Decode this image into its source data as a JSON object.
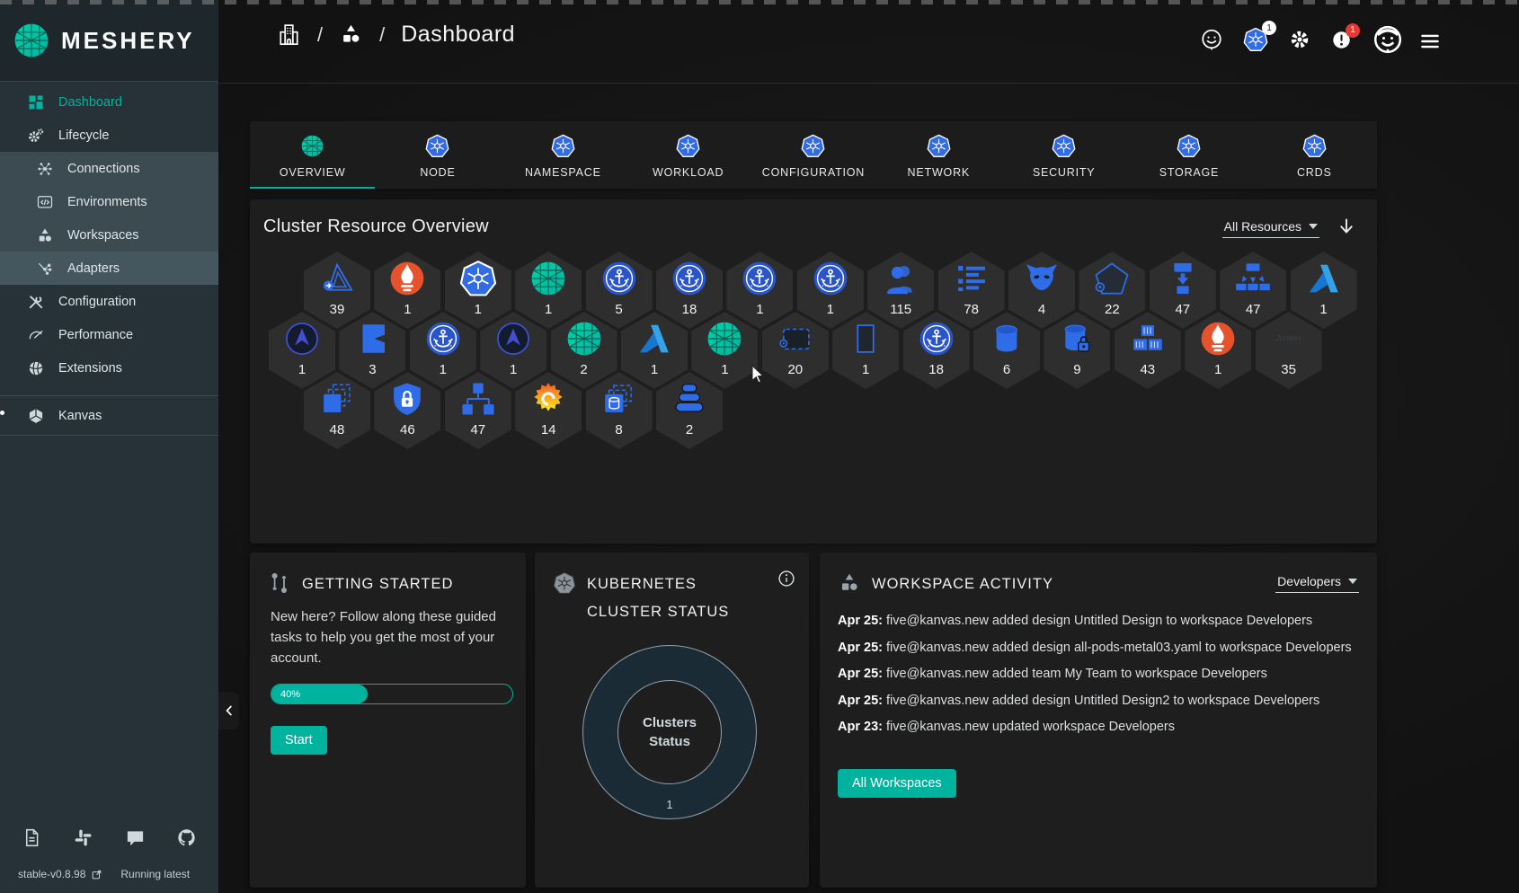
{
  "brand": {
    "name": "MESHERY"
  },
  "accent_color": "#00B39F",
  "sidebar": {
    "items": [
      {
        "label": "Dashboard",
        "icon": "dashboard",
        "active": true,
        "group": false
      },
      {
        "label": "Lifecycle",
        "icon": "lifecycle",
        "active": false,
        "group": false
      },
      {
        "label": "Connections",
        "icon": "connections",
        "active": false,
        "group": true
      },
      {
        "label": "Environments",
        "icon": "environments",
        "active": false,
        "group": true
      },
      {
        "label": "Workspaces",
        "icon": "workspaces",
        "active": false,
        "group": true
      },
      {
        "label": "Adapters",
        "icon": "adapters",
        "active": false,
        "group": true,
        "highlight": true
      },
      {
        "label": "Configuration",
        "icon": "configuration",
        "active": false,
        "group": false
      },
      {
        "label": "Performance",
        "icon": "performance",
        "active": false,
        "group": false
      },
      {
        "label": "Extensions",
        "icon": "extensions",
        "active": false,
        "group": false
      }
    ],
    "secondary": [
      {
        "label": "Kanvas",
        "icon": "kanvas"
      }
    ],
    "footer": {
      "icons": [
        "doc",
        "slack",
        "chat",
        "github"
      ],
      "version": "stable-v0.8.98",
      "status": "Running latest"
    }
  },
  "header": {
    "breadcrumb": {
      "icons": [
        "building",
        "shapes"
      ],
      "separator": "/",
      "title": "Dashboard"
    },
    "actions": [
      {
        "icon": "smiley",
        "name": "meshy-assistant"
      },
      {
        "icon": "kubernetes",
        "name": "cluster-connection",
        "badge": "1",
        "badge_style": "light"
      },
      {
        "icon": "gear",
        "name": "settings"
      },
      {
        "icon": "alert",
        "name": "notifications",
        "badge": "1",
        "badge_style": "red"
      },
      {
        "icon": "avatar",
        "name": "profile"
      }
    ],
    "menu_icon": "menu"
  },
  "tabs": [
    {
      "label": "OVERVIEW",
      "icon": "meshery",
      "active": true
    },
    {
      "label": "NODE",
      "icon": "kubernetes",
      "active": false
    },
    {
      "label": "NAMESPACE",
      "icon": "kubernetes",
      "active": false
    },
    {
      "label": "WORKLOAD",
      "icon": "kubernetes",
      "active": false
    },
    {
      "label": "CONFIGURATION",
      "icon": "kubernetes",
      "active": false
    },
    {
      "label": "NETWORK",
      "icon": "kubernetes",
      "active": false
    },
    {
      "label": "SECURITY",
      "icon": "kubernetes",
      "active": false
    },
    {
      "label": "STORAGE",
      "icon": "kubernetes",
      "active": false
    },
    {
      "label": "CRDS",
      "icon": "kubernetes",
      "active": false
    }
  ],
  "overview": {
    "title": "Cluster Resource Overview",
    "filter_label": "All Resources",
    "rows": [
      [
        {
          "icon": "triangle-arrow",
          "count": "39"
        },
        {
          "icon": "prometheus",
          "count": "1"
        },
        {
          "icon": "kubernetes",
          "count": "1"
        },
        {
          "icon": "meshery",
          "count": "1"
        },
        {
          "icon": "cert-manager",
          "count": "5"
        },
        {
          "icon": "cert-manager",
          "count": "18"
        },
        {
          "icon": "cert-manager",
          "count": "1"
        },
        {
          "icon": "cert-manager",
          "count": "1"
        },
        {
          "icon": "users",
          "count": "115"
        },
        {
          "icon": "list",
          "count": "78"
        },
        {
          "icon": "daemon",
          "count": "4"
        },
        {
          "icon": "pentagon",
          "count": "22"
        },
        {
          "icon": "deploy-arrow",
          "count": "47"
        },
        {
          "icon": "fan-out",
          "count": "47"
        },
        {
          "icon": "azure",
          "count": "1"
        }
      ],
      [
        {
          "icon": "circle-arrow",
          "count": "1"
        },
        {
          "icon": "square-left-arrow",
          "count": "3"
        },
        {
          "icon": "cert-manager",
          "count": "1"
        },
        {
          "icon": "circle-arrow",
          "count": "1"
        },
        {
          "icon": "meshery",
          "count": "2"
        },
        {
          "icon": "azure",
          "count": "1"
        },
        {
          "icon": "meshery",
          "count": "1"
        },
        {
          "icon": "dashed-rect",
          "count": "20"
        },
        {
          "icon": "rect-outline",
          "count": "1"
        },
        {
          "icon": "cert-manager",
          "count": "18"
        },
        {
          "icon": "cylinder",
          "count": "6"
        },
        {
          "icon": "cylinder-lock",
          "count": "9"
        },
        {
          "icon": "containers",
          "count": "43"
        },
        {
          "icon": "prometheus",
          "count": "1"
        },
        {
          "icon": "juniper",
          "count": "35"
        }
      ],
      [
        {
          "icon": "pages-stack",
          "count": "48"
        },
        {
          "icon": "shield-lock",
          "count": "46"
        },
        {
          "icon": "net-tree",
          "count": "47"
        },
        {
          "icon": "grafana",
          "count": "14"
        },
        {
          "icon": "layers-cylinder",
          "count": "8"
        },
        {
          "icon": "disks-stack",
          "count": "2"
        }
      ]
    ]
  },
  "cards": {
    "getting_started": {
      "icon": "journey",
      "title": "GETTING STARTED",
      "body": "New here? Follow along these guided tasks to help you get the most of your account.",
      "progress_percent": 40,
      "progress_label": "40%",
      "button": "Start"
    },
    "cluster_status": {
      "icon": "kubernetes-gray",
      "title": "KUBERNETES CLUSTER STATUS",
      "info_icon": "info",
      "donut": {
        "center_line1": "Clusters",
        "center_line2": "Status",
        "segment_value": "1"
      }
    },
    "workspace_activity": {
      "icon": "shapes",
      "title": "WORKSPACE ACTIVITY",
      "filter_label": "Developers",
      "events": [
        {
          "date": "Apr 25",
          "text": "five@kanvas.new added design Untitled Design to workspace Developers"
        },
        {
          "date": "Apr 25",
          "text": "five@kanvas.new added design all-pods-metal03.yaml to workspace Developers"
        },
        {
          "date": "Apr 25",
          "text": "five@kanvas.new added team My Team to workspace Developers"
        },
        {
          "date": "Apr 25",
          "text": "five@kanvas.new added design Untitled Design2 to workspace Developers"
        },
        {
          "date": "Apr 23",
          "text": "five@kanvas.new updated workspace Developers"
        }
      ],
      "button": "All Workspaces"
    }
  }
}
